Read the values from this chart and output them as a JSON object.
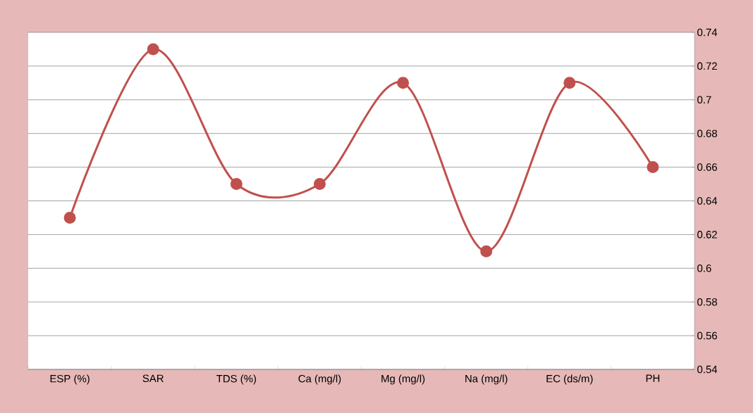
{
  "chart_data": {
    "type": "line",
    "categories": [
      "ESP  (%)",
      "SAR",
      "TDS (%)",
      "Ca (mg/l)",
      "Mg (mg/l)",
      "Na (mg/l)",
      "EC (ds/m)",
      "PH"
    ],
    "values": [
      0.63,
      0.73,
      0.65,
      0.65,
      0.71,
      0.61,
      0.71,
      0.66
    ],
    "color": "#c0504d",
    "marker": "circle",
    "line_style": "solid",
    "ylim": [
      0.54,
      0.74
    ],
    "yticks": [
      0.54,
      0.56,
      0.58,
      0.6,
      0.62,
      0.64,
      0.66,
      0.68,
      0.7,
      0.72,
      0.74
    ],
    "grid": "y"
  }
}
